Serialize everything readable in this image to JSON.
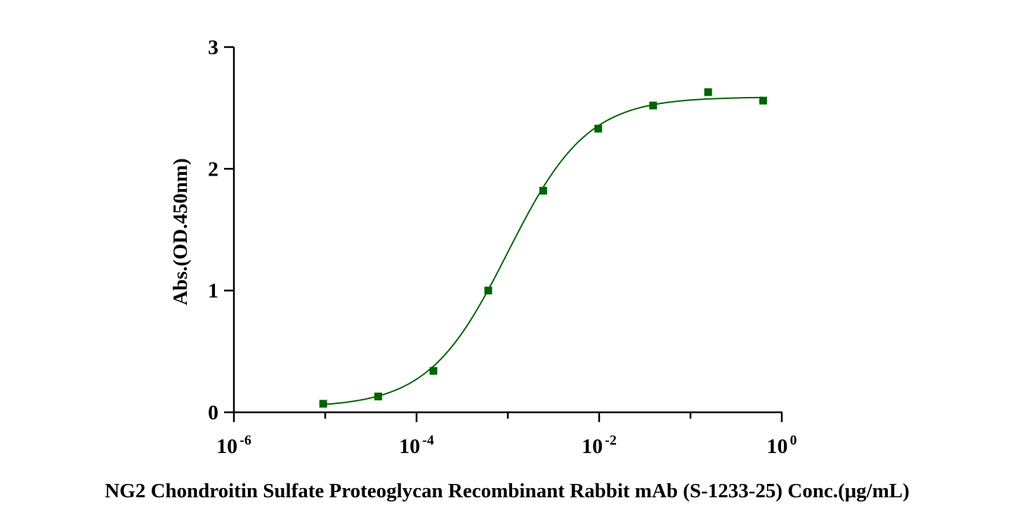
{
  "chart_data": {
    "type": "scatter",
    "title": "",
    "xlabel": "NG2 Chondroitin Sulfate Proteoglycan Recombinant Rabbit mAb (S-1233-25) Conc.(μg/mL)",
    "ylabel": "Abs.(OD.450nm)",
    "x_scale": "log10",
    "xlim": [
      1e-06,
      1
    ],
    "ylim": [
      0,
      3
    ],
    "x_ticks": [
      {
        "value": 1e-06,
        "base": "10",
        "exp": "-6"
      },
      {
        "value": 0.0001,
        "base": "10",
        "exp": "-4"
      },
      {
        "value": 0.01,
        "base": "10",
        "exp": "-2"
      },
      {
        "value": 1,
        "base": "10",
        "exp": "0"
      }
    ],
    "y_ticks": [
      {
        "value": 0,
        "label": "0"
      },
      {
        "value": 1,
        "label": "1"
      },
      {
        "value": 2,
        "label": "2"
      },
      {
        "value": 3,
        "label": "3"
      }
    ],
    "series": [
      {
        "x": [
          9.5e-06,
          3.8e-05,
          0.000153,
          0.00061,
          0.00244,
          0.00977,
          0.039,
          0.156,
          0.625
        ],
        "y": [
          0.07,
          0.13,
          0.34,
          1.0,
          1.82,
          2.33,
          2.52,
          2.63,
          2.56
        ],
        "color": "#006400",
        "marker": "square",
        "fit": "4PL",
        "fit_params": {
          "bottom": 0.04,
          "top": 2.59,
          "log_ec50": -3.0,
          "hill": 1.0
        }
      }
    ],
    "grid": false,
    "legend": "none"
  }
}
